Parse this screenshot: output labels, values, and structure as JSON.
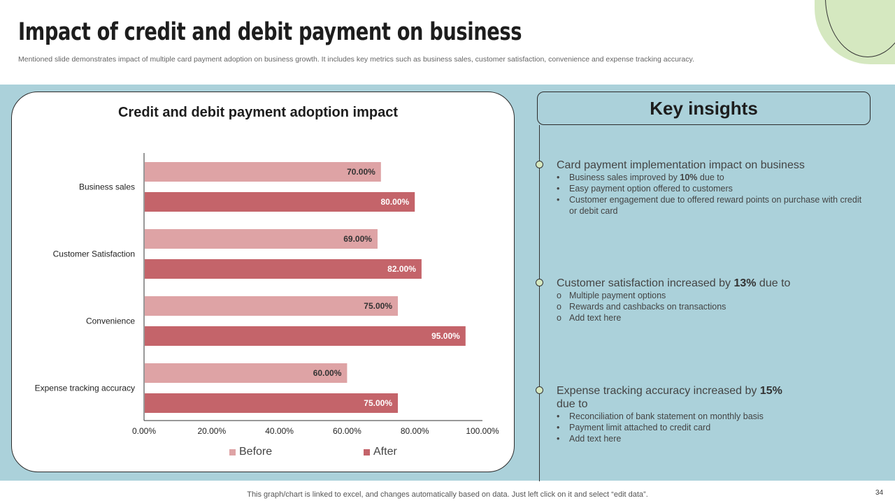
{
  "slide": {
    "title": "Impact of credit and debit payment on business",
    "subtitle": "Mentioned slide demonstrates impact of multiple card payment adoption on business growth. It includes key metrics such as business sales, customer satisfaction, convenience and expense tracking accuracy.",
    "footer_note": "This graph/chart is linked to excel,  and changes automatically based on data. Just left click on it and select “edit data”.",
    "page_number": "34"
  },
  "colors": {
    "before": "#dea3a5",
    "after": "#c4646a",
    "band": "#abd1da",
    "accent_green": "#d5e8c0"
  },
  "chart_data": {
    "type": "bar",
    "orientation": "horizontal",
    "title": "Credit and debit payment adoption impact",
    "categories": [
      "Business sales",
      "Customer Satisfaction",
      "Convenience",
      "Expense tracking accuracy"
    ],
    "series": [
      {
        "name": "Before",
        "values": [
          70,
          69,
          75,
          60
        ],
        "labels": [
          "70.00%",
          "69.00%",
          "75.00%",
          "60.00%"
        ]
      },
      {
        "name": "After",
        "values": [
          80,
          82,
          95,
          75
        ],
        "labels": [
          "80.00%",
          "82.00%",
          "95.00%",
          "75.00%"
        ]
      }
    ],
    "xlim": [
      0,
      100
    ],
    "x_ticks": [
      "0.00%",
      "20.00%",
      "40.00%",
      "60.00%",
      "80.00%",
      "100.00%"
    ],
    "grid": false,
    "legend_position": "bottom"
  },
  "insights": {
    "header": "Key insights",
    "blocks": [
      {
        "heading_pre": "Card payment implementation impact on business",
        "heading_bold": "",
        "heading_post": "",
        "bullet": "•",
        "items": [
          {
            "pre": "Business sales improved  by ",
            "bold": "10%",
            "post": " due to"
          },
          {
            "pre": "Easy payment option offered  to customers",
            "bold": "",
            "post": ""
          },
          {
            "pre": "Customer engagement  due to offered  reward points on purchase with credit or debit card",
            "bold": "",
            "post": ""
          }
        ]
      },
      {
        "heading_pre": "Customer satisfaction increased by ",
        "heading_bold": "13%",
        "heading_post": " due to",
        "bullet": "o",
        "items": [
          {
            "pre": "Multiple payment options",
            "bold": "",
            "post": ""
          },
          {
            "pre": "Rewards  and  cashbacks on transactions",
            "bold": "",
            "post": ""
          },
          {
            "pre": "Add text here",
            "bold": "",
            "post": ""
          }
        ]
      },
      {
        "heading_pre": "Expense tracking accuracy increased by ",
        "heading_bold": "15%",
        "heading_post": " due to",
        "bullet": "•",
        "items": [
          {
            "pre": "Reconciliation of bank statement on monthly basis",
            "bold": "",
            "post": ""
          },
          {
            "pre": "Payment limit attached to credit card",
            "bold": "",
            "post": ""
          },
          {
            "pre": "Add text here",
            "bold": "",
            "post": ""
          }
        ]
      }
    ]
  }
}
